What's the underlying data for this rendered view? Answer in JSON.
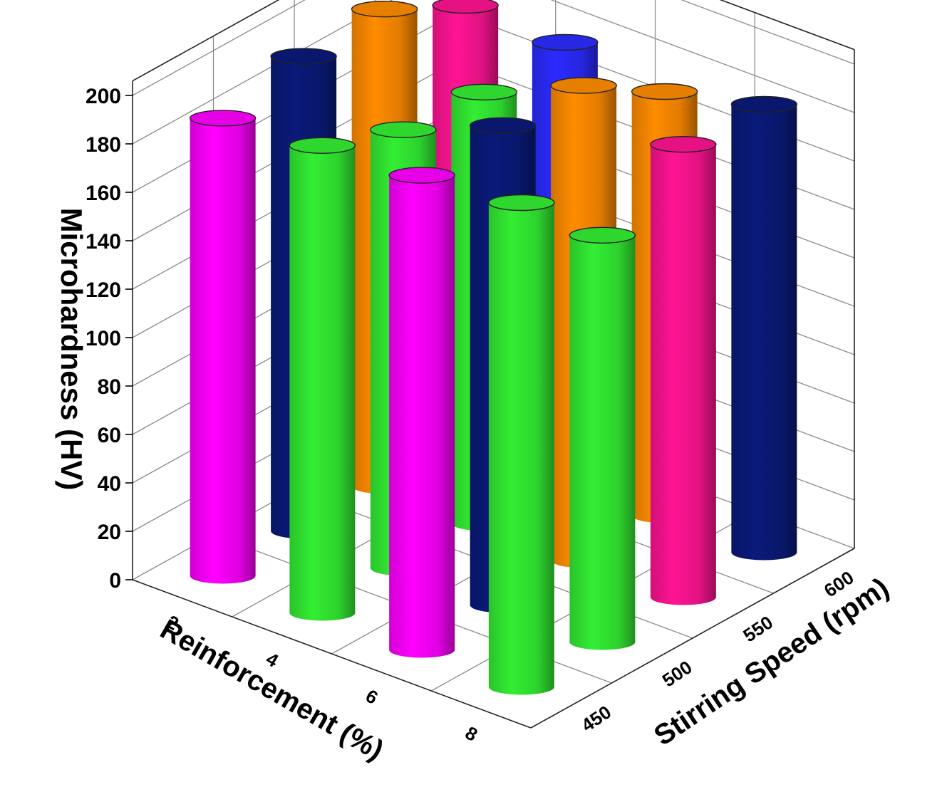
{
  "chart_data": {
    "type": "bar3d",
    "zlabel": "Microhardness (HV)",
    "xlabel": "Reinforcement (%)",
    "ylabel": "Stirring Speed (rpm)",
    "z_ticks": [
      "0",
      "20",
      "40",
      "60",
      "80",
      "100",
      "120",
      "140",
      "160",
      "180",
      "200"
    ],
    "zlim": [
      0,
      200
    ],
    "x_ticks": [
      "2",
      "4",
      "6",
      "8"
    ],
    "y_ticks": [
      "450",
      "500",
      "550",
      "600"
    ],
    "grid": true,
    "bars": [
      {
        "reinforcement": 2,
        "speed": 600,
        "value": 180,
        "color": "#ff1493"
      },
      {
        "reinforcement": 4,
        "speed": 600,
        "value": 180,
        "color": "#2b2bff"
      },
      {
        "reinforcement": 4,
        "speed": 550,
        "value": 178,
        "color": "#33ee33"
      },
      {
        "reinforcement": 6,
        "speed": 600,
        "value": 175,
        "color": "#ff8c00"
      },
      {
        "reinforcement": 6,
        "speed": 550,
        "value": 196,
        "color": "#ff8c00"
      },
      {
        "reinforcement": 6,
        "speed": 500,
        "value": 198,
        "color": "#0a1a7a"
      },
      {
        "reinforcement": 6,
        "speed": 450,
        "value": 196,
        "color": "#ff00ff"
      },
      {
        "reinforcement": 8,
        "speed": 600,
        "value": 185,
        "color": "#0a1a7a"
      },
      {
        "reinforcement": 8,
        "speed": 550,
        "value": 187,
        "color": "#ff1493"
      },
      {
        "reinforcement": 8,
        "speed": 500,
        "value": 168,
        "color": "#33ee33"
      },
      {
        "reinforcement": 8,
        "speed": 450,
        "value": 200,
        "color": "#33ee33"
      },
      {
        "reinforcement": 2,
        "speed": 500,
        "value": 196,
        "color": "#0a1a7a"
      },
      {
        "reinforcement": 2,
        "speed": 550,
        "value": 197,
        "color": "#ff8c00"
      },
      {
        "reinforcement": 4,
        "speed": 500,
        "value": 181,
        "color": "#33ee33"
      },
      {
        "reinforcement": 4,
        "speed": 450,
        "value": 193,
        "color": "#33ee33"
      },
      {
        "reinforcement": 2,
        "speed": 450,
        "value": 189,
        "color": "#ff00ff"
      }
    ]
  }
}
